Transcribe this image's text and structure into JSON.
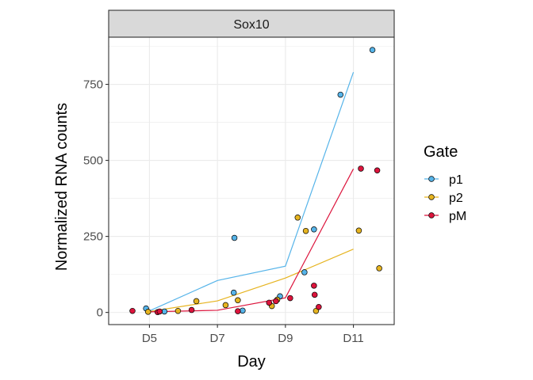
{
  "chart_data": {
    "type": "scatter",
    "facet": "Sox10",
    "xlabel": "Day",
    "ylabel": "Normalized RNA counts",
    "categories": [
      "D5",
      "D7",
      "D9",
      "D11"
    ],
    "ylim": [
      -40,
      905
    ],
    "yticks": [
      0,
      250,
      500,
      750
    ],
    "ytick_labels": [
      "0",
      "250",
      "500",
      "750"
    ],
    "grid": true,
    "legend_title": "Gate",
    "legend_position": "right",
    "series": [
      {
        "name": "p1",
        "color": "#56B4E9",
        "line": [
          [
            1,
            5
          ],
          [
            2,
            105
          ],
          [
            3,
            152
          ],
          [
            4,
            790
          ]
        ],
        "points": [
          [
            0.95,
            13
          ],
          [
            1.22,
            3
          ],
          [
            2.25,
            245
          ],
          [
            2.24,
            65
          ],
          [
            2.37,
            6
          ],
          [
            2.92,
            53
          ],
          [
            3.28,
            132
          ],
          [
            3.42,
            273
          ],
          [
            3.81,
            716
          ],
          [
            4.28,
            863
          ]
        ]
      },
      {
        "name": "p2",
        "color": "#E6B420",
        "line": [
          [
            1,
            3
          ],
          [
            2,
            38
          ],
          [
            3,
            113
          ],
          [
            4,
            208
          ]
        ],
        "points": [
          [
            0.98,
            2
          ],
          [
            1.42,
            5
          ],
          [
            1.69,
            37
          ],
          [
            2.12,
            24
          ],
          [
            2.3,
            40
          ],
          [
            2.8,
            21
          ],
          [
            2.88,
            42
          ],
          [
            3.18,
            312
          ],
          [
            3.3,
            268
          ],
          [
            3.45,
            5
          ],
          [
            4.08,
            269
          ],
          [
            4.38,
            145
          ]
        ]
      },
      {
        "name": "pM",
        "color": "#DC143C",
        "line": [
          [
            1,
            2
          ],
          [
            2,
            7
          ],
          [
            3,
            48
          ],
          [
            4,
            472
          ]
        ],
        "points": [
          [
            0.75,
            5
          ],
          [
            1.12,
            1
          ],
          [
            1.15,
            3
          ],
          [
            1.62,
            8
          ],
          [
            2.3,
            4
          ],
          [
            2.76,
            32
          ],
          [
            2.86,
            37
          ],
          [
            3.07,
            47
          ],
          [
            3.42,
            88
          ],
          [
            3.43,
            58
          ],
          [
            3.49,
            18
          ],
          [
            4.11,
            473
          ],
          [
            4.35,
            467
          ]
        ]
      }
    ]
  }
}
